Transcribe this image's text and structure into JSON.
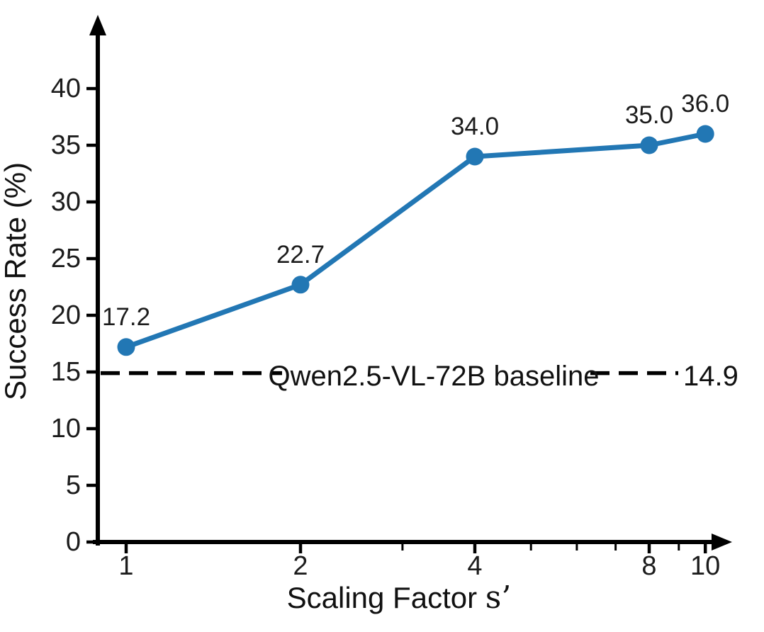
{
  "chart_data": {
    "type": "line",
    "title": "",
    "xlabel": "Scaling Factor s’",
    "xlabel_prefix": "Scaling Factor ",
    "xlabel_math": "s’",
    "ylabel": "Success Rate (%)",
    "x": [
      1,
      2,
      4,
      8,
      10
    ],
    "values": [
      17.2,
      22.7,
      34.0,
      35.0,
      36.0
    ],
    "point_labels": [
      "17.2",
      "22.7",
      "34.0",
      "35.0",
      "36.0"
    ],
    "series_name": "Success Rate",
    "x_scale": "log2",
    "xlim": [
      1,
      11
    ],
    "ylim": [
      0,
      44
    ],
    "x_ticks": [
      1,
      2,
      4,
      8,
      10
    ],
    "x_tick_labels": [
      "1",
      "2",
      "4",
      "8",
      "10"
    ],
    "x_minor_ticks": [
      3,
      5,
      6,
      7,
      9
    ],
    "y_ticks": [
      0,
      5,
      10,
      15,
      20,
      25,
      30,
      35,
      40
    ],
    "grid": "off",
    "legend": "none",
    "baseline": {
      "label": "Qwen2.5-VL-72B baseline",
      "value": 14.9,
      "value_label": "14.9",
      "style": "dashed"
    },
    "colors": {
      "line": "#2277b4",
      "axis": "#000000",
      "text": "#1c1c1c"
    }
  }
}
